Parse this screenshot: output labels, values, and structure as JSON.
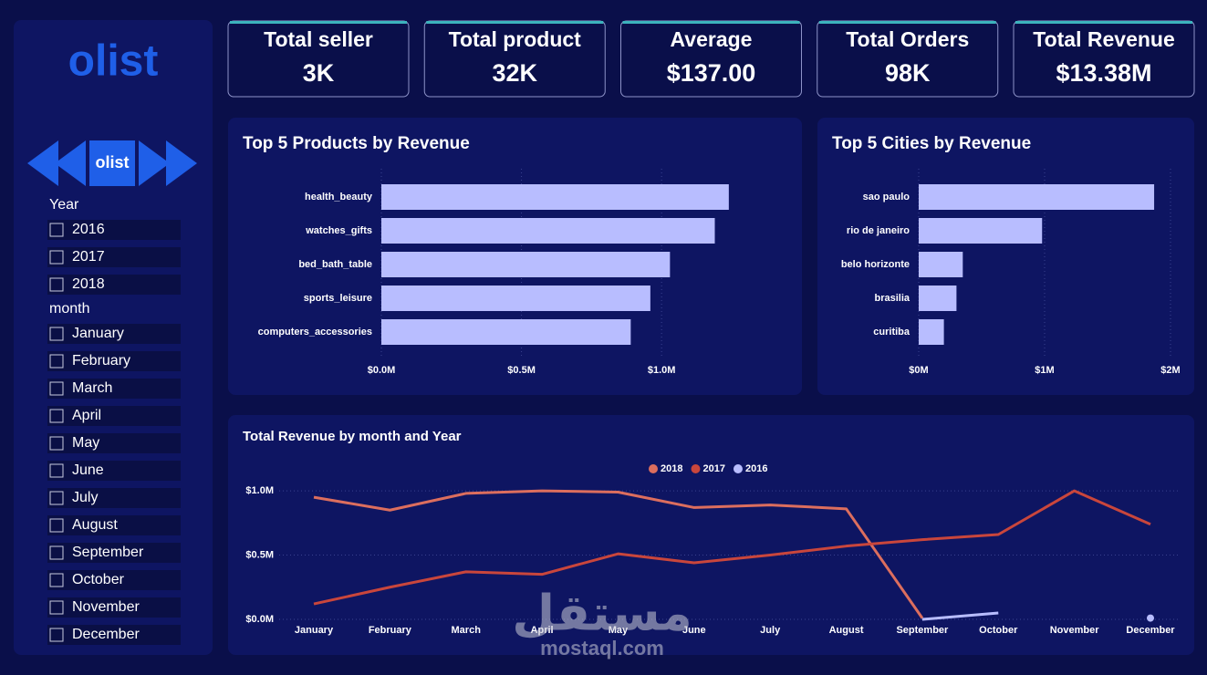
{
  "logo": "olist",
  "nav_logo": "olist",
  "kpis": [
    {
      "label": "Total seller",
      "value": "3K"
    },
    {
      "label": "Total product",
      "value": "32K"
    },
    {
      "label": "Average",
      "value": "$137.00"
    },
    {
      "label": "Total Orders",
      "value": "98K"
    },
    {
      "label": "Total Revenue",
      "value": "$13.38M"
    }
  ],
  "filters": {
    "year_title": "Year",
    "years": [
      "2016",
      "2017",
      "2018"
    ],
    "month_title": "month",
    "months": [
      "January",
      "February",
      "March",
      "April",
      "May",
      "June",
      "July",
      "August",
      "September",
      "October",
      "November",
      "December"
    ]
  },
  "chart_data": [
    {
      "type": "bar",
      "horizontal": true,
      "title": "Top 5 Products by Revenue",
      "categories": [
        "health_beauty",
        "watches_gifts",
        "bed_bath_table",
        "sports_leisure",
        "computers_accessories"
      ],
      "values": [
        1240000,
        1190000,
        1030000,
        960000,
        890000
      ],
      "color": "#b8bdff",
      "xlim": [
        0,
        1400000
      ],
      "xticks": [
        {
          "value": 0,
          "label": "$0.0M"
        },
        {
          "value": 500000,
          "label": "$0.5M"
        },
        {
          "value": 1000000,
          "label": "$1.0M"
        }
      ],
      "grid": true
    },
    {
      "type": "bar",
      "horizontal": true,
      "title": "Top 5 Cities by Revenue",
      "categories": [
        "sao paulo",
        "rio de janeiro",
        "belo horizonte",
        "brasilia",
        "curitiba"
      ],
      "values": [
        1870000,
        980000,
        350000,
        300000,
        200000
      ],
      "color": "#b8bdff",
      "xlim": [
        0,
        2000000
      ],
      "xticks": [
        {
          "value": 0,
          "label": "$0M"
        },
        {
          "value": 1000000,
          "label": "$1M"
        },
        {
          "value": 2000000,
          "label": "$2M"
        }
      ],
      "grid": true
    },
    {
      "type": "line",
      "title": "Total Revenue by month and Year",
      "categories": [
        "January",
        "February",
        "March",
        "April",
        "May",
        "June",
        "July",
        "August",
        "September",
        "October",
        "November",
        "December"
      ],
      "series": [
        {
          "name": "2018",
          "color": "#dc6e5e",
          "values": [
            950000,
            850000,
            980000,
            1000000,
            990000,
            870000,
            890000,
            860000,
            10000,
            null,
            null,
            null
          ]
        },
        {
          "name": "2017",
          "color": "#c9463c",
          "values": [
            120000,
            250000,
            370000,
            350000,
            510000,
            440000,
            500000,
            570000,
            620000,
            660000,
            1000000,
            740000
          ]
        },
        {
          "name": "2016",
          "color": "#b8bdff",
          "values": [
            null,
            null,
            null,
            null,
            null,
            null,
            null,
            null,
            0,
            50000,
            null,
            10000
          ]
        }
      ],
      "ylim": [
        0,
        1100000
      ],
      "yticks": [
        {
          "value": 0,
          "label": "$0.0M"
        },
        {
          "value": 500000,
          "label": "$0.5M"
        },
        {
          "value": 1000000,
          "label": "$1.0M"
        }
      ],
      "grid": true,
      "legend": "top"
    }
  ],
  "watermark": {
    "arabic": "مستقل",
    "url": "mostaql.com"
  }
}
